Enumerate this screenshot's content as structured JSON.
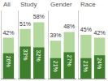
{
  "chart_data": [
    {
      "type": "bar",
      "title": "All",
      "categories": [
        null
      ],
      "series": [
        {
          "color": "#b3d89c",
          "values": [
            42
          ],
          "value_labels": [
            "42%"
          ]
        },
        {
          "color": "#3d7f2a",
          "values": [
            26
          ],
          "value_labels": [
            "26%"
          ]
        }
      ],
      "ylim": [
        0,
        70
      ],
      "yticks": [],
      "grid": false,
      "data_labels": true,
      "tick_labels": false,
      "stacked": false
    },
    {
      "type": "bar",
      "title": "Study",
      "categories": [
        null,
        null
      ],
      "series": [
        {
          "color": "#b3d89c",
          "values": [
            51,
            58
          ],
          "value_labels": [
            "51%",
            "58%"
          ]
        },
        {
          "color": "#3d7f2a",
          "values": [
            33,
            32
          ],
          "value_labels": [
            "33%",
            "32%"
          ]
        }
      ],
      "ylim": [
        0,
        70
      ],
      "yticks": [],
      "grid": false,
      "data_labels": true,
      "tick_labels": false,
      "stacked": false
    },
    {
      "type": "bar",
      "title": "Gender",
      "categories": [
        null,
        null
      ],
      "series": [
        {
          "color": "#b3d89c",
          "values": [
            39,
            48
          ],
          "value_labels": [
            "39%",
            "48%"
          ]
        },
        {
          "color": "#3d7f2a",
          "values": [
            21,
            27
          ],
          "value_labels": [
            "21%",
            "27%"
          ]
        }
      ],
      "ylim": [
        0,
        70
      ],
      "yticks": [],
      "grid": false,
      "data_labels": true,
      "tick_labels": false,
      "stacked": false
    },
    {
      "type": "bar",
      "title": "Race",
      "categories": [
        null,
        null
      ],
      "series": [
        {
          "color": "#b3d89c",
          "values": [
            45,
            42
          ],
          "value_labels": [
            "45%",
            "42%"
          ]
        },
        {
          "color": "#3d7f2a",
          "values": [
            21,
            24
          ],
          "value_labels": [
            "21%",
            "24%"
          ]
        }
      ],
      "ylim": [
        0,
        70
      ],
      "yticks": [],
      "grid": false,
      "data_labels": true,
      "tick_labels": false,
      "stacked": false
    }
  ]
}
